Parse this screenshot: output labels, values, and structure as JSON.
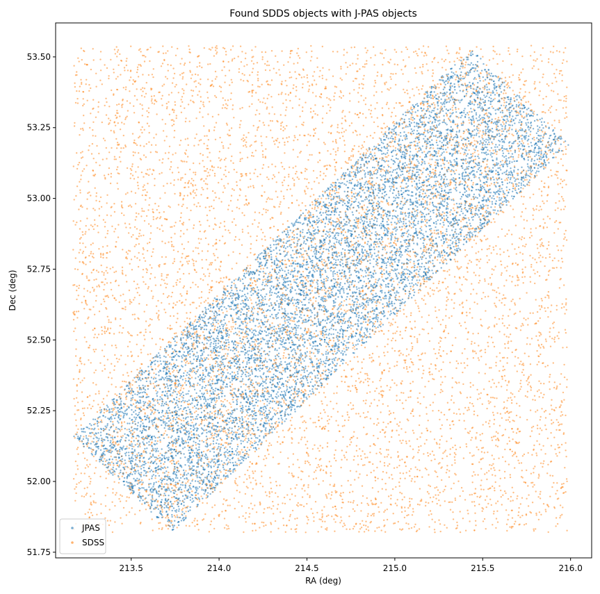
{
  "chart_data": {
    "type": "scatter",
    "title": "Found SDDS objects with J-PAS objects",
    "xlabel": "RA (deg)",
    "ylabel": "Dec (deg)",
    "xlim": [
      213.07,
      216.12
    ],
    "ylim": [
      51.73,
      53.62
    ],
    "xticks": [
      {
        "value": 213.5,
        "label": "213.5"
      },
      {
        "value": 214.0,
        "label": "214.0"
      },
      {
        "value": 214.5,
        "label": "214.5"
      },
      {
        "value": 215.0,
        "label": "215.0"
      },
      {
        "value": 215.5,
        "label": "215.5"
      },
      {
        "value": 216.0,
        "label": "216.0"
      }
    ],
    "yticks": [
      {
        "value": 51.75,
        "label": "51.75"
      },
      {
        "value": 52.0,
        "label": "52.00"
      },
      {
        "value": 52.25,
        "label": "52.25"
      },
      {
        "value": 52.5,
        "label": "52.50"
      },
      {
        "value": 52.75,
        "label": "52.75"
      },
      {
        "value": 53.0,
        "label": "53.00"
      },
      {
        "value": 53.25,
        "label": "53.25"
      },
      {
        "value": 53.5,
        "label": "53.50"
      }
    ],
    "grid": false,
    "legend_position": "lower-left",
    "series": [
      {
        "name": "SDSS",
        "color": "#ff7f0e",
        "region": "rectangle",
        "ra_range": [
          213.17,
          215.98
        ],
        "dec_range": [
          51.82,
          53.54
        ]
      },
      {
        "name": "JPAS",
        "color": "#1f77b4",
        "region": "rotated-strip",
        "corners": [
          {
            "ra": 213.17,
            "dec": 52.16
          },
          {
            "ra": 215.43,
            "dec": 53.53
          },
          {
            "ra": 215.98,
            "dec": 53.19
          },
          {
            "ra": 213.73,
            "dec": 51.82
          }
        ]
      }
    ],
    "legend": [
      {
        "label": "JPAS",
        "color": "#1f77b4"
      },
      {
        "label": "SDSS",
        "color": "#ff7f0e"
      }
    ]
  }
}
